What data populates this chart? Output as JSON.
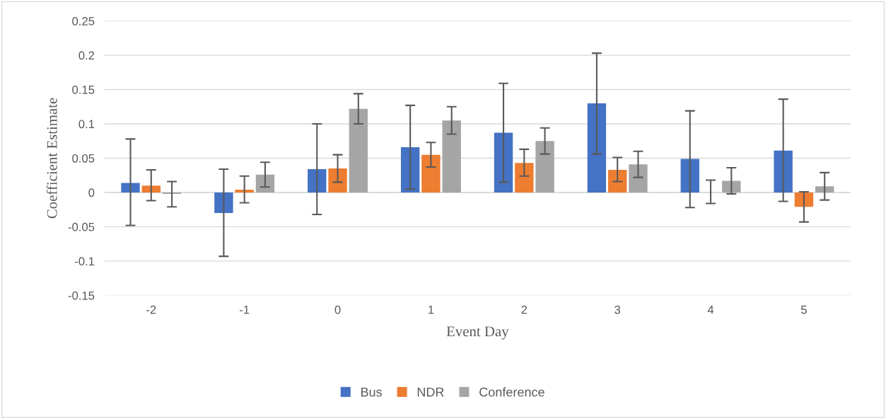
{
  "chart_data": {
    "type": "bar",
    "xlabel": "Event Day",
    "ylabel": "Coefficient Estimate",
    "categories": [
      "-2",
      "-1",
      "0",
      "1",
      "2",
      "3",
      "4",
      "5"
    ],
    "series": [
      {
        "name": "Bus",
        "color": "#4472c4",
        "values": [
          0.014,
          -0.03,
          0.034,
          0.066,
          0.087,
          0.13,
          0.049,
          0.061
        ],
        "errors": [
          [
            -0.048,
            0.078
          ],
          [
            -0.093,
            0.034
          ],
          [
            -0.032,
            0.1
          ],
          [
            0.005,
            0.127
          ],
          [
            0.015,
            0.159
          ],
          [
            0.056,
            0.203
          ],
          [
            -0.022,
            0.119
          ],
          [
            -0.013,
            0.136
          ]
        ]
      },
      {
        "name": "NDR",
        "color": "#ed7d31",
        "values": [
          0.01,
          0.004,
          0.035,
          0.055,
          0.043,
          0.033,
          0.0,
          -0.021
        ],
        "errors": [
          [
            -0.012,
            0.033
          ],
          [
            -0.015,
            0.024
          ],
          [
            0.015,
            0.055
          ],
          [
            0.037,
            0.073
          ],
          [
            0.024,
            0.063
          ],
          [
            0.016,
            0.051
          ],
          [
            -0.016,
            0.018
          ],
          [
            -0.043,
            0.001
          ]
        ]
      },
      {
        "name": "Conference",
        "color": "#a5a5a5",
        "values": [
          -0.002,
          0.026,
          0.122,
          0.105,
          0.075,
          0.041,
          0.017,
          0.009
        ],
        "errors": [
          [
            -0.021,
            0.016
          ],
          [
            0.008,
            0.044
          ],
          [
            0.1,
            0.144
          ],
          [
            0.085,
            0.125
          ],
          [
            0.056,
            0.094
          ],
          [
            0.022,
            0.06
          ],
          [
            -0.002,
            0.036
          ],
          [
            -0.011,
            0.029
          ]
        ]
      }
    ],
    "ylim": [
      -0.15,
      0.25
    ],
    "yticks": [
      {
        "value": -0.15,
        "label": "-0.15"
      },
      {
        "value": -0.1,
        "label": "-0.1"
      },
      {
        "value": -0.05,
        "label": "-0.05"
      },
      0,
      0.05,
      0.1,
      0.15,
      0.2,
      0.25
    ],
    "grid": "y",
    "legend": "bottom"
  }
}
